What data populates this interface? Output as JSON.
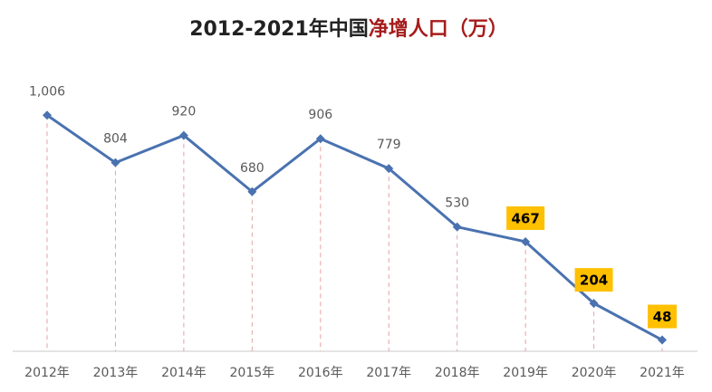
{
  "chart_data": {
    "type": "line",
    "title": [
      "2012-2021年中国",
      "净增人口（万）"
    ],
    "title_colors": [
      "#222222",
      "#a61c1c"
    ],
    "categories": [
      "2012年",
      "2013年",
      "2014年",
      "2015年",
      "2016年",
      "2017年",
      "2018年",
      "2019年",
      "2020年",
      "2021年"
    ],
    "values": [
      1006,
      804,
      920,
      680,
      906,
      779,
      530,
      467,
      204,
      48
    ],
    "value_labels": [
      "1,006",
      "804",
      "920",
      "680",
      "906",
      "779",
      "530",
      "467",
      "204",
      "48"
    ],
    "color": "#4a72b0",
    "drop_line_color": "#e6a3a3",
    "highlighted_categories": [
      "2019年",
      "2020年",
      "2021年"
    ],
    "highlight_color": "#ffc000",
    "ylim": [
      0,
      1200
    ]
  }
}
